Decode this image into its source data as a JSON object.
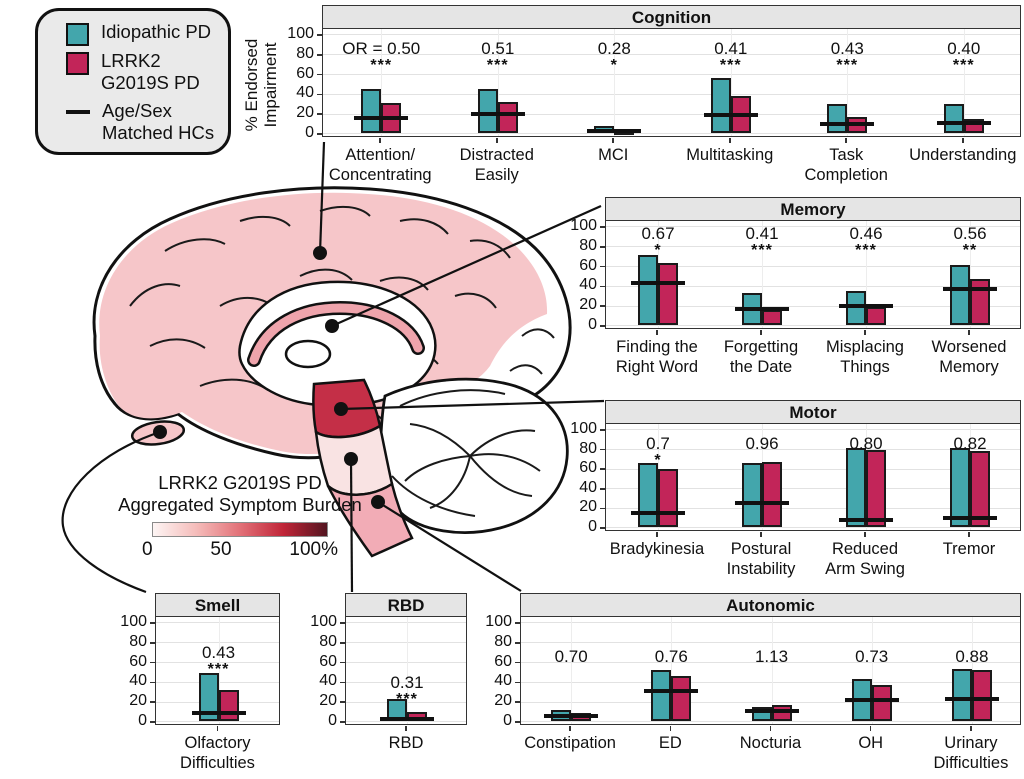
{
  "colors": {
    "idiopathic": "#43A6AC",
    "lrrk2": "#C22559",
    "hc_line": "#111111",
    "panel_header_bg": "#E5E5E5",
    "cortex_pink": "#F6C6C9",
    "corpus_callosum_pink": "#EFA4AC",
    "midbrain_red": "#C42F47",
    "pons_pink": "#F9E3E3",
    "medulla_pink": "#F2ACB6"
  },
  "legend": {
    "items": [
      {
        "label": "Idiopathic PD",
        "swatch": "square",
        "color": "#43A6AC"
      },
      {
        "label": "LRRK2 G2019S PD",
        "swatch": "square",
        "color": "#C22559"
      },
      {
        "label": "Age/Sex Matched HCs",
        "swatch": "line",
        "color": "#111111"
      }
    ]
  },
  "y_axis": {
    "title_line1": "% Endorsed",
    "title_line2": "Impairment",
    "ticks": [
      0,
      20,
      40,
      60,
      80,
      100
    ]
  },
  "brain_scale": {
    "title_line1": "LRRK2 G2019S PD",
    "title_line2": "Aggregated Symptom Burden",
    "tick_labels": [
      "0",
      "50",
      "100%"
    ],
    "gradient_stops": [
      "#FDF5F4",
      "#F5BCBA",
      "#E27178",
      "#C02538",
      "#531520"
    ]
  },
  "chart_data": [
    {
      "id": "cognition",
      "type": "bar",
      "title": "Cognition",
      "ylim": [
        0,
        100
      ],
      "categories": [
        [
          "Attention/",
          "Concentrating"
        ],
        [
          "Distracted",
          "Easily"
        ],
        [
          "MCI"
        ],
        [
          "Multitasking"
        ],
        [
          "Task",
          "Completion"
        ],
        [
          "Understanding"
        ]
      ],
      "series": [
        {
          "name": "Idiopathic PD",
          "values": [
            45,
            45,
            7,
            56,
            30,
            30
          ]
        },
        {
          "name": "LRRK2 G2019S PD",
          "values": [
            31,
            32,
            2,
            38,
            17,
            15
          ]
        },
        {
          "name": "Age/Sex Matched HCs",
          "values": [
            16,
            20,
            2,
            19,
            9,
            11
          ]
        }
      ],
      "odds_ratios": [
        "OR = 0.50",
        "0.51",
        "0.28",
        "0.41",
        "0.43",
        "0.40"
      ],
      "significance": [
        "***",
        "***",
        "*",
        "***",
        "***",
        "***"
      ]
    },
    {
      "id": "memory",
      "type": "bar",
      "title": "Memory",
      "ylim": [
        0,
        100
      ],
      "categories": [
        [
          "Finding the",
          "Right Word"
        ],
        [
          "Forgetting",
          "the Date"
        ],
        [
          "Misplacing",
          "Things"
        ],
        [
          "Worsened",
          "Memory"
        ]
      ],
      "series": [
        {
          "name": "Idiopathic PD",
          "values": [
            71,
            33,
            35,
            61
          ]
        },
        {
          "name": "LRRK2 G2019S PD",
          "values": [
            63,
            16,
            19,
            47
          ]
        },
        {
          "name": "Age/Sex Matched HCs",
          "values": [
            43,
            17,
            20,
            37
          ]
        }
      ],
      "odds_ratios": [
        "0.67",
        "0.41",
        "0.46",
        "0.56"
      ],
      "significance": [
        "*",
        "***",
        "***",
        "**"
      ]
    },
    {
      "id": "motor",
      "type": "bar",
      "title": "Motor",
      "ylim": [
        0,
        100
      ],
      "categories": [
        [
          "Bradykinesia"
        ],
        [
          "Postural",
          "Instability"
        ],
        [
          "Reduced",
          "Arm Swing"
        ],
        [
          "Tremor"
        ]
      ],
      "series": [
        {
          "name": "Idiopathic PD",
          "values": [
            66,
            66,
            81,
            81
          ]
        },
        {
          "name": "LRRK2 G2019S PD",
          "values": [
            60,
            67,
            79,
            78
          ]
        },
        {
          "name": "Age/Sex Matched HCs",
          "values": [
            15,
            25,
            8,
            10
          ]
        }
      ],
      "odds_ratios": [
        "0.7",
        "0.96",
        "0.80",
        "0.82"
      ],
      "significance": [
        "*",
        "",
        "",
        ""
      ]
    },
    {
      "id": "smell",
      "type": "bar",
      "title": "Smell",
      "ylim": [
        0,
        100
      ],
      "categories": [
        [
          "Olfactory",
          "Difficulties"
        ]
      ],
      "series": [
        {
          "name": "Idiopathic PD",
          "values": [
            49
          ]
        },
        {
          "name": "LRRK2 G2019S PD",
          "values": [
            32
          ]
        },
        {
          "name": "Age/Sex Matched HCs",
          "values": [
            8
          ]
        }
      ],
      "odds_ratios": [
        "0.43"
      ],
      "significance": [
        "***"
      ]
    },
    {
      "id": "rbd",
      "type": "bar",
      "title": "RBD",
      "ylim": [
        0,
        100
      ],
      "categories": [
        [
          "RBD"
        ]
      ],
      "series": [
        {
          "name": "Idiopathic PD",
          "values": [
            23
          ]
        },
        {
          "name": "LRRK2 G2019S PD",
          "values": [
            9
          ]
        },
        {
          "name": "Age/Sex Matched HCs",
          "values": [
            2
          ]
        }
      ],
      "odds_ratios": [
        "0.31"
      ],
      "significance": [
        "***"
      ]
    },
    {
      "id": "autonomic",
      "type": "bar",
      "title": "Autonomic",
      "ylim": [
        0,
        100
      ],
      "categories": [
        [
          "Constipation"
        ],
        [
          "ED"
        ],
        [
          "Nocturia"
        ],
        [
          "OH"
        ],
        [
          "Urinary",
          "Difficulties"
        ]
      ],
      "series": [
        {
          "name": "Idiopathic PD",
          "values": [
            12,
            52,
            15,
            43,
            53
          ]
        },
        {
          "name": "LRRK2 G2019S PD",
          "values": [
            8,
            46,
            17,
            37,
            52
          ]
        },
        {
          "name": "Age/Sex Matched HCs",
          "values": [
            5,
            31,
            11,
            22,
            23
          ]
        }
      ],
      "odds_ratios": [
        "0.70",
        "0.76",
        "1.13",
        "0.73",
        "0.88"
      ],
      "significance": [
        "",
        "",
        "",
        "",
        ""
      ]
    }
  ]
}
